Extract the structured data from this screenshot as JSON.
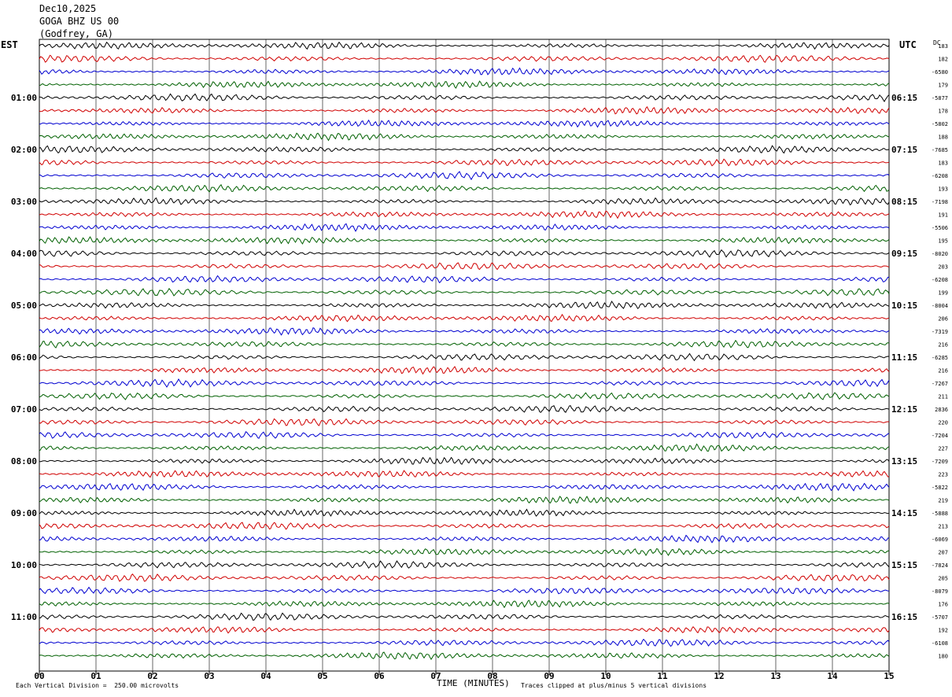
{
  "header": {
    "date": "Dec10,2025",
    "station": "GOGA BHZ US 00",
    "location": "(Godfrey, GA)"
  },
  "left_zone_label": "EST",
  "right_zone_label": "UTC",
  "dc_label": "DC",
  "footer": {
    "scale_note": "Each Vertical Division =  250.00 microvolts",
    "clip_note": "Traces clipped at plus/minus 5 vertical divisions",
    "x_title": "TIME (MINUTES)"
  },
  "chart_data": {
    "type": "line",
    "title": "",
    "xlabel": "TIME (MINUTES)",
    "xlim": [
      0,
      15
    ],
    "x_ticks": [
      "00",
      "01",
      "02",
      "03",
      "04",
      "05",
      "06",
      "07",
      "08",
      "09",
      "10",
      "11",
      "12",
      "13",
      "14",
      "15"
    ],
    "trace_count": 48,
    "trace_minutes": 15,
    "trace_colors": [
      "#000000",
      "#d00000",
      "#0000d0",
      "#006000"
    ],
    "left_hour_labels": [
      "01:00",
      "02:00",
      "03:00",
      "04:00",
      "05:00",
      "06:00",
      "07:00",
      "08:00",
      "09:00",
      "10:00",
      "11:00"
    ],
    "right_hour_labels": [
      "06:15",
      "07:15",
      "08:15",
      "09:15",
      "10:15",
      "11:15",
      "12:15",
      "13:15",
      "14:15",
      "15:15",
      "16:15"
    ],
    "dc_offsets": [
      "183",
      "182",
      "-6580",
      "179",
      "-5877",
      "178",
      "-5802",
      "188",
      "-7685",
      "183",
      "-6208",
      "193",
      "-7198",
      "191",
      "-5506",
      "195",
      "-8020",
      "203",
      "-6208",
      "199",
      "-8004",
      "206",
      "-7319",
      "216",
      "-6285",
      "216",
      "-7267",
      "211",
      "2836",
      "220",
      "-7204",
      "227",
      "-7209",
      "223",
      "-5822",
      "219",
      "-5888",
      "213",
      "-6069",
      "207",
      "-7824",
      "205",
      "-8079",
      "176",
      "-5707",
      "192",
      "-6108",
      "180"
    ]
  }
}
